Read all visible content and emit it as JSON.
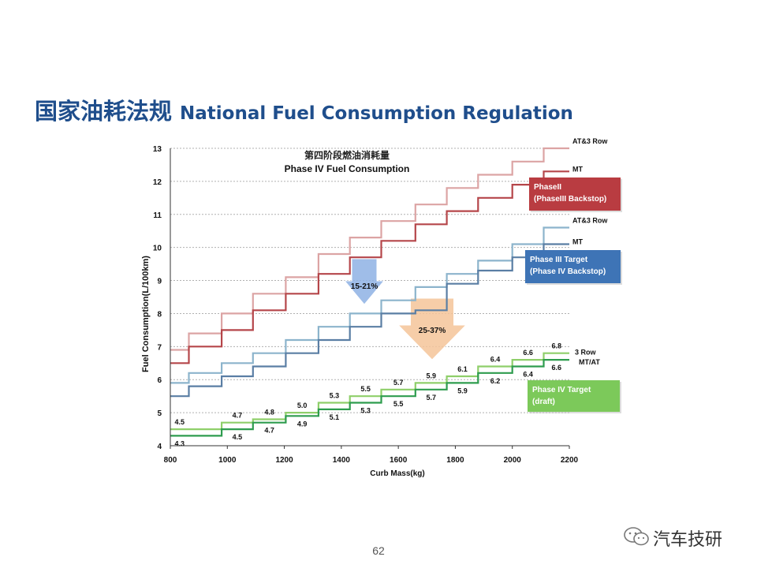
{
  "header": {
    "title_cn": "国家油耗法规",
    "title_en": "National Fuel Consumption Regulation"
  },
  "page_number": "62",
  "watermark": {
    "text": "汽车技研",
    "icon": "wechat-icon"
  },
  "chart_data": {
    "type": "line",
    "title_cn": "第四阶段燃油消耗量",
    "title": "Phase IV Fuel Consumption",
    "xlabel": "Curb Mass(kg)",
    "ylabel": "Fuel Consumption(L/100km)",
    "xlim": [
      800,
      2200
    ],
    "ylim": [
      4,
      13
    ],
    "xticks": [
      800,
      1000,
      1200,
      1400,
      1600,
      1800,
      2000,
      2200
    ],
    "yticks": [
      4,
      5,
      6,
      7,
      8,
      9,
      10,
      11,
      12,
      13
    ],
    "grid": "horizontal-dotted",
    "step_boundaries": [
      800,
      865,
      980,
      1090,
      1205,
      1320,
      1430,
      1540,
      1660,
      1770,
      1880,
      2000,
      2110,
      2200
    ],
    "series": [
      {
        "id": "p3-at",
        "name": "AT&3 Row",
        "color": "#dca4a4",
        "values": [
          6.9,
          7.4,
          8.0,
          8.6,
          9.1,
          9.8,
          10.3,
          10.8,
          11.3,
          11.8,
          12.2,
          12.6,
          13.0
        ]
      },
      {
        "id": "p3-mt",
        "name": "MT",
        "color": "#b5464a",
        "values": [
          6.5,
          7.0,
          7.5,
          8.1,
          8.6,
          9.2,
          9.7,
          10.2,
          10.7,
          11.1,
          11.5,
          11.9,
          12.3
        ]
      },
      {
        "id": "p4-at",
        "name": "AT&3 Row",
        "color": "#8cb4cc",
        "values": [
          5.9,
          6.2,
          6.5,
          6.8,
          7.2,
          7.6,
          8.0,
          8.4,
          8.8,
          9.2,
          9.6,
          10.1,
          10.6
        ]
      },
      {
        "id": "p4-mt",
        "name": "MT",
        "color": "#5a7ea4",
        "values": [
          5.5,
          5.8,
          6.1,
          6.4,
          6.8,
          7.2,
          7.6,
          8.0,
          8.1,
          8.9,
          9.3,
          9.7,
          10.1
        ]
      },
      {
        "id": "p5-3row",
        "name": "3 Row",
        "color": "#8fcf6a",
        "values": [
          4.5,
          4.5,
          4.7,
          4.8,
          5.0,
          5.3,
          5.5,
          5.7,
          5.9,
          6.1,
          6.4,
          6.6,
          6.8
        ],
        "labels": [
          "4.5",
          "",
          "4.7",
          "4.8",
          "5.0",
          "5.3",
          "5.5",
          "5.7",
          "5.9",
          "6.1",
          "6.4",
          "6.6",
          "6.8"
        ]
      },
      {
        "id": "p5-mtat",
        "name": "MT/AT",
        "color": "#2e9c4e",
        "values": [
          4.3,
          4.3,
          4.5,
          4.7,
          4.9,
          5.1,
          5.3,
          5.5,
          5.7,
          5.9,
          6.2,
          6.4,
          6.6
        ],
        "labels": [
          "4.3",
          "",
          "4.5",
          "4.7",
          "4.9",
          "5.1",
          "5.3",
          "5.5",
          "5.7",
          "5.9",
          "6.2",
          "6.4",
          "6.6"
        ]
      }
    ],
    "legend_boxes": [
      {
        "id": "phase2",
        "line1": "PhaseII",
        "line2": "(PhaseIII Backstop)",
        "color": "#b93c41"
      },
      {
        "id": "phase3",
        "line1": "Phase III Target",
        "line2": "(Phase IV Backstop)",
        "color": "#3e74b6"
      },
      {
        "id": "phase4",
        "line1": "Phase IV Target",
        "line2": "(draft)",
        "color": "#7cc95a"
      }
    ],
    "annotations": [
      {
        "id": "reduction-1",
        "text": "15-21%",
        "color": "#8fb2e4"
      },
      {
        "id": "reduction-2",
        "text": "25-37%",
        "color": "#f5c59a"
      }
    ]
  }
}
